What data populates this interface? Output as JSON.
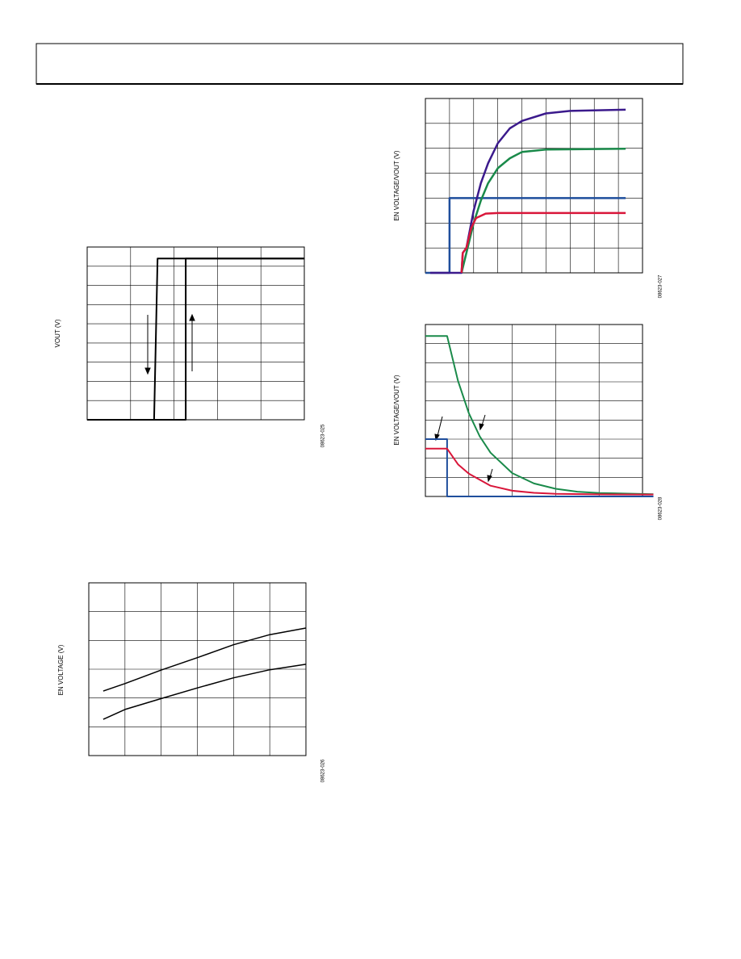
{
  "chart_data": [
    {
      "type": "line",
      "y_label": "VOUT (V)",
      "figure_code": "08623-025",
      "xlim": [
        0,
        5
      ],
      "ylim": [
        0,
        9
      ],
      "series": [
        {
          "color": "#000000",
          "x": [
            0,
            2.27,
            2.27,
            5
          ],
          "values": [
            0,
            0,
            8.4,
            8.4
          ]
        },
        {
          "color": "#000000",
          "x": [
            5,
            1.62,
            1.54,
            1.54
          ],
          "values": [
            8.4,
            8.4,
            0,
            0
          ]
        }
      ]
    },
    {
      "type": "line",
      "y_label": "EN VOLTAGE (V)",
      "figure_code": "08623-026",
      "xlim": [
        0,
        6
      ],
      "ylim": [
        0,
        6
      ],
      "series": [
        {
          "color": "#000000",
          "x": [
            0.4,
            1,
            2,
            3,
            4,
            5,
            6
          ],
          "values": [
            2.24,
            2.5,
            2.97,
            3.4,
            3.85,
            4.2,
            4.43
          ]
        },
        {
          "color": "#000000",
          "x": [
            0.4,
            1,
            2,
            3,
            4,
            5,
            6
          ],
          "values": [
            1.26,
            1.6,
            1.98,
            2.35,
            2.7,
            2.98,
            3.17
          ]
        }
      ]
    },
    {
      "type": "line",
      "y_label": "EN VOLTAGE/VOUT (V)",
      "figure_code": "08623-027",
      "xlim": [
        0,
        9
      ],
      "ylim": [
        0,
        7
      ],
      "series": [
        {
          "color": "#1f4e9c",
          "x": [
            0,
            1,
            1,
            8.3
          ],
          "values": [
            0,
            0,
            3,
            3
          ]
        },
        {
          "color": "#3b1a8c",
          "x": [
            0.2,
            1.5,
            1.55,
            1.7,
            2,
            2.3,
            2.6,
            3,
            3.5,
            4,
            5,
            6,
            8.3
          ],
          "values": [
            0,
            0,
            0.8,
            1,
            2.5,
            3.6,
            4.4,
            5.2,
            5.8,
            6.1,
            6.4,
            6.5,
            6.55
          ]
        },
        {
          "color": "#1a8a4a",
          "x": [
            1.5,
            1.7,
            2,
            2.3,
            2.6,
            3,
            3.5,
            4,
            5,
            8.3
          ],
          "values": [
            0,
            0.8,
            2,
            2.9,
            3.6,
            4.2,
            4.6,
            4.85,
            4.95,
            4.98
          ]
        },
        {
          "color": "#d9163a",
          "x": [
            1.5,
            1.55,
            1.7,
            1.9,
            2.1,
            2.5,
            3,
            8.3
          ],
          "values": [
            0,
            0.8,
            1,
            1.8,
            2.2,
            2.38,
            2.4,
            2.4
          ]
        }
      ]
    },
    {
      "type": "line",
      "y_label": "EN VOLTAGE/VOUT (V)",
      "figure_code": "08623-028",
      "xlim": [
        0,
        5
      ],
      "ylim": [
        0,
        9
      ],
      "series": [
        {
          "color": "#1f4e9c",
          "x": [
            0,
            0.5,
            0.5,
            5.25
          ],
          "values": [
            3,
            3,
            0,
            0
          ]
        },
        {
          "color": "#1a8a4a",
          "x": [
            0,
            0.5,
            0.75,
            1,
            1.25,
            1.5,
            2,
            2.5,
            3,
            3.5,
            4,
            5.25
          ],
          "values": [
            8.4,
            8.4,
            6.05,
            4.36,
            3.15,
            2.29,
            1.22,
            0.68,
            0.4,
            0.25,
            0.18,
            0.12
          ]
        },
        {
          "color": "#d9163a",
          "x": [
            0,
            0.5,
            0.75,
            1,
            1.5,
            2,
            2.5,
            3,
            4,
            5.25
          ],
          "values": [
            2.5,
            2.5,
            1.68,
            1.19,
            0.56,
            0.3,
            0.19,
            0.14,
            0.11,
            0.1
          ]
        }
      ]
    }
  ]
}
